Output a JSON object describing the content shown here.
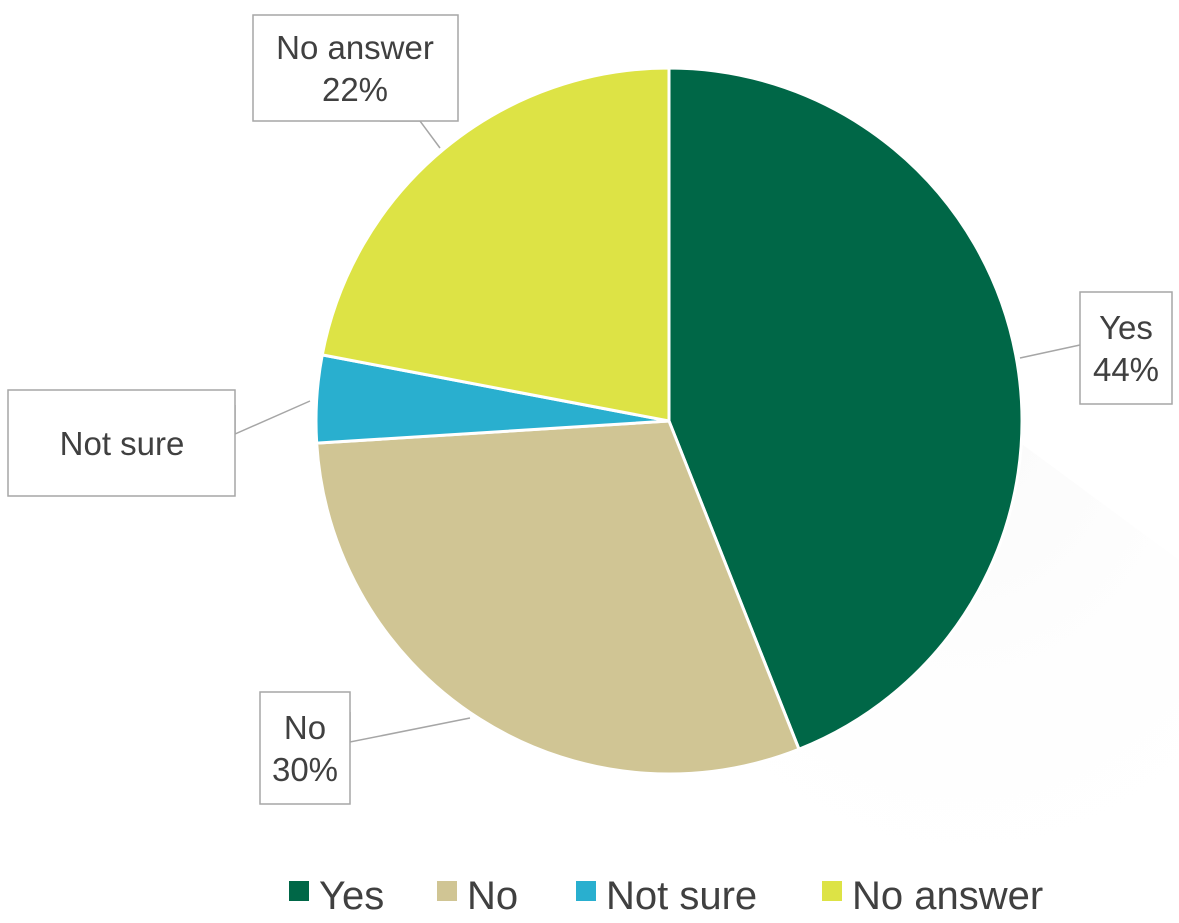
{
  "chart_data": {
    "type": "pie",
    "title": "",
    "categories": [
      "Yes",
      "No",
      "Not sure",
      "No answer"
    ],
    "values": [
      44,
      30,
      4,
      22
    ],
    "colors": [
      "#006747",
      "#d0c594",
      "#29afcf",
      "#dde345"
    ],
    "data_labels": [
      {
        "category": "Yes",
        "value": "44%"
      },
      {
        "category": "No",
        "value": "30%"
      },
      {
        "category": "Not sure",
        "value": ""
      },
      {
        "category": "No answer",
        "value": "22%"
      }
    ],
    "start_angle": "12 o'clock",
    "direction": "clockwise",
    "legend": {
      "position": "bottom",
      "items": [
        "Yes",
        "No",
        "Not sure",
        "No answer"
      ]
    }
  }
}
